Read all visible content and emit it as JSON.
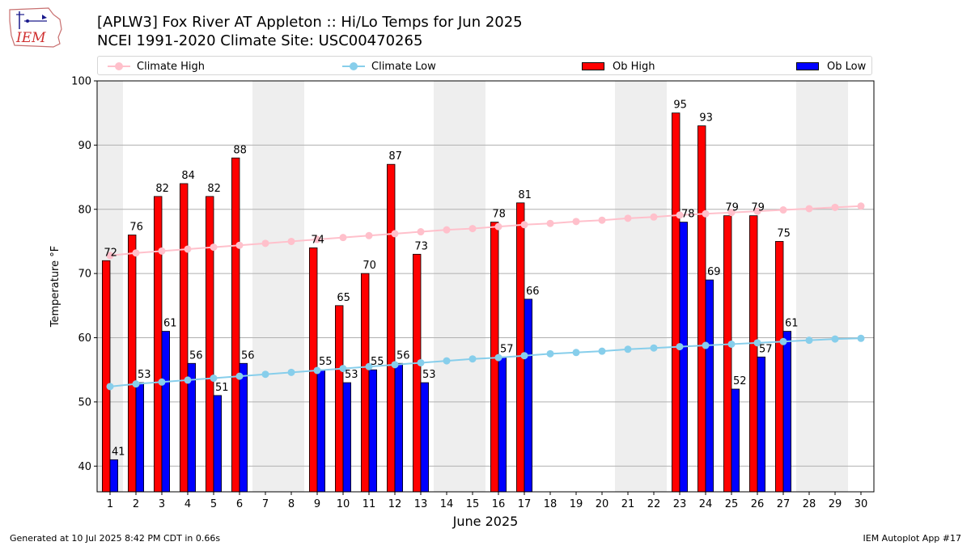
{
  "logo": {
    "text": "IEM"
  },
  "title_line1": "[APLW3] Fox River  AT Appleton :: Hi/Lo Temps for Jun 2025",
  "title_line2": "NCEI 1991-2020 Climate Site: USC00470265",
  "legend": {
    "climate_high": "Climate High",
    "climate_low": "Climate Low",
    "ob_high": "Ob High",
    "ob_low": "Ob Low"
  },
  "footer_left": "Generated at 10 Jul 2025 8:42 PM CDT in 0.66s",
  "footer_right": "IEM Autoplot App #17",
  "colors": {
    "ob_high": "#ff0000",
    "ob_low": "#0000ff",
    "climate_high": "#ffc0cb",
    "climate_low": "#87ceeb",
    "weekend_shade": "#eeeeee",
    "grid": "#b0b0b0"
  },
  "chart_data": {
    "type": "bar",
    "xlabel": "June 2025",
    "ylabel": "Temperature °F",
    "ylim": [
      36,
      100
    ],
    "yticks": [
      40,
      50,
      60,
      70,
      80,
      90,
      100
    ],
    "grid": "horizontal",
    "legend_position": "top",
    "days": [
      1,
      2,
      3,
      4,
      5,
      6,
      7,
      8,
      9,
      10,
      11,
      12,
      13,
      14,
      15,
      16,
      17,
      18,
      19,
      20,
      21,
      22,
      23,
      24,
      25,
      26,
      27,
      28,
      29,
      30
    ],
    "weekend_shaded_days": [
      1,
      7,
      8,
      14,
      15,
      21,
      22,
      28,
      29
    ],
    "series": [
      {
        "name": "Ob High",
        "kind": "bar",
        "values": [
          72,
          76,
          82,
          84,
          82,
          88,
          null,
          null,
          74,
          65,
          70,
          87,
          73,
          null,
          null,
          78,
          81,
          null,
          null,
          null,
          null,
          null,
          95,
          93,
          79,
          79,
          75,
          null,
          null,
          null
        ]
      },
      {
        "name": "Ob Low",
        "kind": "bar",
        "values": [
          41,
          53,
          61,
          56,
          51,
          56,
          null,
          null,
          55,
          53,
          55,
          56,
          53,
          null,
          null,
          57,
          66,
          null,
          null,
          null,
          null,
          null,
          78,
          69,
          52,
          57,
          61,
          null,
          null,
          null
        ]
      },
      {
        "name": "Climate High",
        "kind": "line",
        "values": [
          72.8,
          73.2,
          73.5,
          73.8,
          74.1,
          74.4,
          74.7,
          75.0,
          75.3,
          75.6,
          75.9,
          76.2,
          76.5,
          76.8,
          77.0,
          77.3,
          77.6,
          77.8,
          78.1,
          78.3,
          78.6,
          78.8,
          79.1,
          79.3,
          79.5,
          79.7,
          79.9,
          80.1,
          80.3,
          80.5
        ]
      },
      {
        "name": "Climate Low",
        "kind": "line",
        "values": [
          52.4,
          52.8,
          53.1,
          53.4,
          53.7,
          54.0,
          54.3,
          54.6,
          54.9,
          55.2,
          55.5,
          55.8,
          56.1,
          56.4,
          56.7,
          56.9,
          57.2,
          57.5,
          57.7,
          57.9,
          58.2,
          58.4,
          58.6,
          58.8,
          59.0,
          59.2,
          59.4,
          59.6,
          59.8,
          59.9
        ]
      }
    ]
  }
}
